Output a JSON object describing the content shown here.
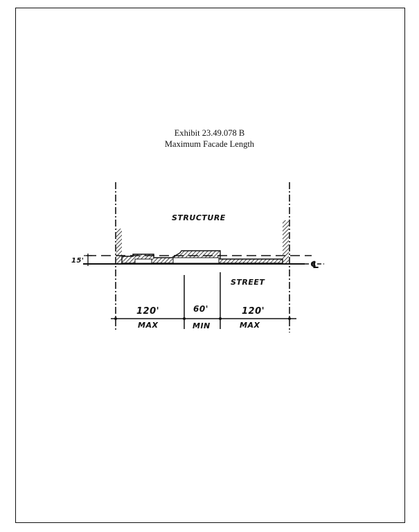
{
  "exhibit": {
    "number": "Exhibit 23.49.078 B",
    "title": "Maximum Facade Length"
  },
  "diagram": {
    "structure_label": "STRUCTURE",
    "street_label": "STREET",
    "setback_label": "15'",
    "property_line_symbol": "℄",
    "segments": [
      {
        "dimension": "120'",
        "constraint": "MAX"
      },
      {
        "dimension": "60'",
        "constraint": "MIN"
      },
      {
        "dimension": "120'",
        "constraint": "MAX"
      }
    ]
  }
}
